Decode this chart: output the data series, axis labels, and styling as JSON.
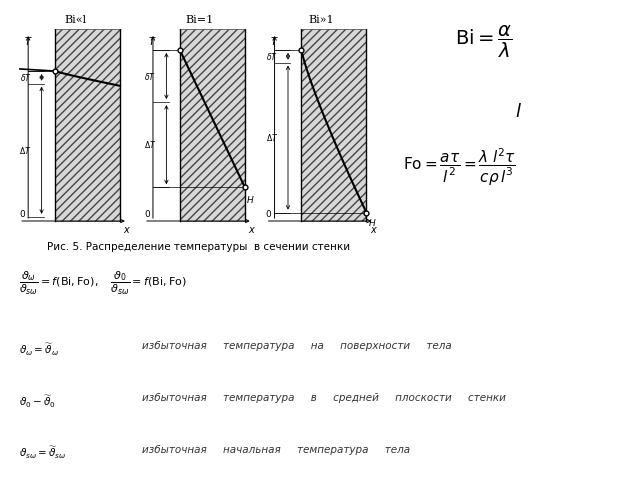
{
  "title_caption": "Рис. 5. Распределение температуры  в сечении стенки",
  "bg_color": "#ffffff",
  "panels": [
    {
      "label": "Bi«l"
    },
    {
      "label": "Bi=1"
    },
    {
      "label": "Bi»1"
    }
  ],
  "caption_fontsize": 8,
  "label_fontsize": 8,
  "axis_label_fontsize": 7,
  "annot_fontsize": 6
}
